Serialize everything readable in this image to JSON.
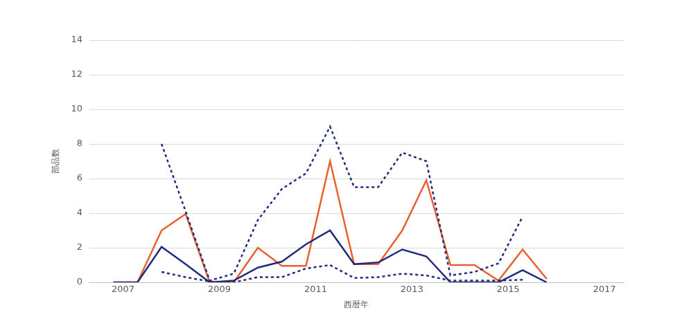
{
  "chart_data": {
    "type": "line",
    "x_label": "西暦年",
    "y_label": "部品数",
    "x": [
      2006.8,
      2007.3,
      2007.8,
      2008.3,
      2008.8,
      2009.3,
      2009.8,
      2010.3,
      2010.8,
      2011.3,
      2011.8,
      2012.3,
      2012.8,
      2013.3,
      2013.8,
      2014.3,
      2014.8,
      2015.3,
      2015.8
    ],
    "series": [
      {
        "color": "#1f2a7c",
        "line_style": "dotted",
        "values": [
          null,
          null,
          8,
          4.1,
          0.1,
          0.5,
          3.6,
          5.4,
          6.3,
          9,
          5.5,
          5.5,
          7.5,
          7,
          0.4,
          0.6,
          1.1,
          3.8,
          null
        ]
      },
      {
        "color": "#1f2a7c",
        "line_style": "dotted",
        "values": [
          null,
          null,
          0.6,
          0.3,
          0.05,
          0,
          0.3,
          0.3,
          0.8,
          1,
          0.25,
          0.3,
          0.5,
          0.4,
          0.1,
          0.1,
          0.1,
          0.15,
          null
        ]
      },
      {
        "color": "#1f2a7c",
        "line_style": "solid",
        "values": [
          0,
          0,
          2.05,
          1.05,
          0,
          0.1,
          0.85,
          1.2,
          2.2,
          3,
          1.05,
          1.15,
          1.9,
          1.5,
          0,
          0,
          0,
          0.7,
          0
        ]
      },
      {
        "color": "#e8602c",
        "line_style": "solid",
        "values": [
          0,
          0,
          3,
          3.95,
          0,
          0,
          2,
          0.95,
          0.95,
          7,
          1.05,
          1.05,
          3,
          5.9,
          1,
          1,
          0.1,
          1.9,
          0.2
        ]
      }
    ],
    "xlim": [
      2006.3,
      2017.4
    ],
    "xticks": [
      2007,
      2009,
      2011,
      2013,
      2015,
      2017
    ],
    "ylim": [
      0,
      14
    ],
    "yticks": [
      0,
      2,
      4,
      6,
      8,
      10,
      12,
      14
    ],
    "grid": "y"
  }
}
